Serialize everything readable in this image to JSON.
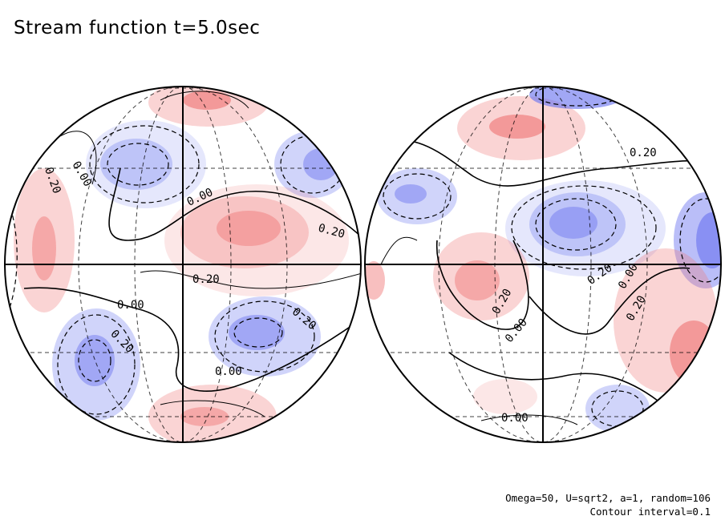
{
  "title": "Stream function t=5.0sec",
  "footer": {
    "params": "Omega=50, U=sqrt2, a=1, random=106",
    "contour": "Contour interval=0.1"
  },
  "colors": {
    "positive": "#f07a7a",
    "negative": "#6e78f0",
    "contour": "#000000",
    "grid": "#000000"
  },
  "contour_labels": {
    "left": [
      "0.20",
      "0.00",
      "0.00",
      "0.20",
      "0.20",
      "0.00",
      "0.20",
      "0.20",
      "0.00"
    ],
    "right": [
      "0.20",
      "0.20",
      "0.00",
      "0.20",
      "0.00",
      "0.20",
      "0.00"
    ]
  }
}
